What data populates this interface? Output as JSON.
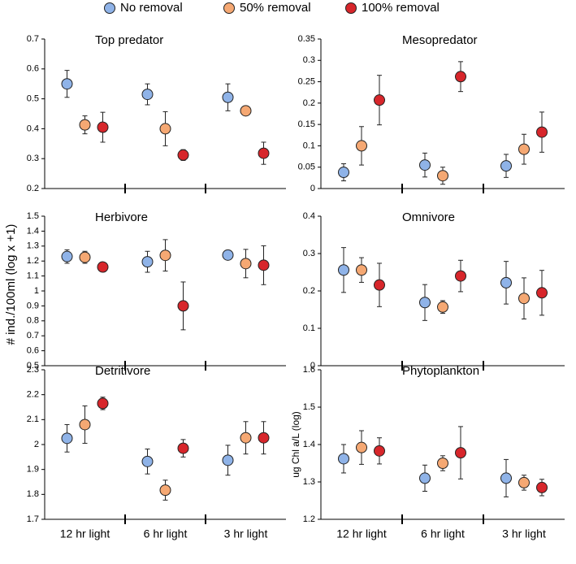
{
  "ylabel": "# ind./100ml (log x +1)",
  "categories": [
    "12 hr light",
    "6 hr light",
    "3 hr light"
  ],
  "legend": [
    {
      "name": "No removal",
      "color": "#8fb3e8"
    },
    {
      "name": "50% removal",
      "color": "#f5a873"
    },
    {
      "name": "100% removal",
      "color": "#d7262b"
    }
  ],
  "chart_data": [
    {
      "type": "dot",
      "title": "Top predator",
      "ylim": [
        0.2,
        0.7
      ],
      "yticks": [
        0.2,
        0.3,
        0.4,
        0.5,
        0.6,
        0.7
      ],
      "series": [
        {
          "values": [
            0.55,
            0.515,
            0.505
          ],
          "errors": [
            0.045,
            0.035,
            0.045
          ]
        },
        {
          "values": [
            0.413,
            0.4,
            0.46
          ],
          "errors": [
            0.03,
            0.057,
            0.012
          ]
        },
        {
          "values": [
            0.405,
            0.312,
            0.318
          ],
          "errors": [
            0.05,
            0.018,
            0.037
          ]
        }
      ]
    },
    {
      "type": "dot",
      "title": "Mesopredator",
      "ylim": [
        0,
        0.35
      ],
      "yticks": [
        0,
        0.05,
        0.1,
        0.15,
        0.2,
        0.25,
        0.3,
        0.35
      ],
      "series": [
        {
          "values": [
            0.038,
            0.055,
            0.053
          ],
          "errors": [
            0.02,
            0.028,
            0.027
          ]
        },
        {
          "values": [
            0.1,
            0.03,
            0.092
          ],
          "errors": [
            0.045,
            0.02,
            0.035
          ]
        },
        {
          "values": [
            0.207,
            0.262,
            0.132
          ],
          "errors": [
            0.058,
            0.035,
            0.047
          ]
        }
      ]
    },
    {
      "type": "dot",
      "title": "Herbivore",
      "ylim": [
        0.5,
        1.5
      ],
      "yticks": [
        0.5,
        0.6,
        0.7,
        0.8,
        0.9,
        1,
        1.1,
        1.2,
        1.3,
        1.4,
        1.5
      ],
      "series": [
        {
          "values": [
            1.23,
            1.195,
            1.24
          ],
          "errors": [
            0.045,
            0.07,
            0.03
          ]
        },
        {
          "values": [
            1.225,
            1.238,
            1.183
          ],
          "errors": [
            0.04,
            0.105,
            0.095
          ]
        },
        {
          "values": [
            1.16,
            0.9,
            1.172
          ],
          "errors": [
            0.025,
            0.16,
            0.13
          ]
        }
      ]
    },
    {
      "type": "dot",
      "title": "Omnivore",
      "ylim": [
        0,
        0.4
      ],
      "yticks": [
        0,
        0.1,
        0.2,
        0.3,
        0.4
      ],
      "series": [
        {
          "values": [
            0.256,
            0.169,
            0.222
          ],
          "errors": [
            0.06,
            0.048,
            0.057
          ]
        },
        {
          "values": [
            0.256,
            0.157,
            0.18
          ],
          "errors": [
            0.033,
            0.017,
            0.055
          ]
        },
        {
          "values": [
            0.216,
            0.24,
            0.195
          ],
          "errors": [
            0.058,
            0.042,
            0.06
          ]
        }
      ]
    },
    {
      "type": "dot",
      "title": "Detritivore",
      "ylim": [
        1.7,
        2.3
      ],
      "yticks": [
        1.7,
        1.8,
        1.9,
        2,
        2.1,
        2.2,
        2.3
      ],
      "series": [
        {
          "values": [
            2.025,
            1.932,
            1.937
          ],
          "errors": [
            0.055,
            0.05,
            0.06
          ]
        },
        {
          "values": [
            2.08,
            1.817,
            2.027
          ],
          "errors": [
            0.075,
            0.04,
            0.065
          ]
        },
        {
          "values": [
            2.165,
            1.985,
            2.027
          ],
          "errors": [
            0.025,
            0.035,
            0.065
          ]
        }
      ]
    },
    {
      "type": "dot",
      "title": "Phytoplankton",
      "ylabel": "ug Chl a/L (log)",
      "ylim": [
        1.2,
        1.6
      ],
      "yticks": [
        1.2,
        1.3,
        1.4,
        1.5,
        1.6
      ],
      "series": [
        {
          "values": [
            1.362,
            1.31,
            1.31
          ],
          "errors": [
            0.038,
            0.035,
            0.05
          ]
        },
        {
          "values": [
            1.392,
            1.35,
            1.298
          ],
          "errors": [
            0.045,
            0.02,
            0.02
          ]
        },
        {
          "values": [
            1.383,
            1.378,
            1.285
          ],
          "errors": [
            0.035,
            0.07,
            0.022
          ]
        }
      ]
    }
  ]
}
